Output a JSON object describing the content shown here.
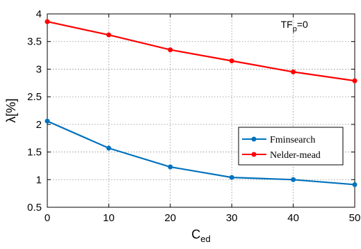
{
  "chart_data": {
    "type": "line",
    "x": [
      0,
      10,
      20,
      30,
      40,
      50
    ],
    "series": [
      {
        "name": "Fminsearch",
        "color": "#0072BD",
        "values": [
          2.06,
          1.57,
          1.23,
          1.04,
          1.0,
          0.91
        ]
      },
      {
        "name": "Nelder-mead",
        "color": "#FF0000",
        "values": [
          3.86,
          3.62,
          3.35,
          3.15,
          2.95,
          2.79
        ]
      }
    ],
    "xlim": [
      0,
      50
    ],
    "ylim": [
      0.5,
      4
    ],
    "xticks": [
      "0",
      "10",
      "20",
      "30",
      "40",
      "50"
    ],
    "yticks": [
      "0.5",
      "1",
      "1.5",
      "2",
      "2.5",
      "3",
      "3.5",
      "4"
    ],
    "xlabel_main": "C",
    "xlabel_sub": "ed",
    "ylabel": "λ[%]",
    "annotation": {
      "main": "TF",
      "sub": "p",
      "rest": "=0",
      "x": 40,
      "y": 3.75
    },
    "grid": true,
    "legend_position": "right"
  }
}
